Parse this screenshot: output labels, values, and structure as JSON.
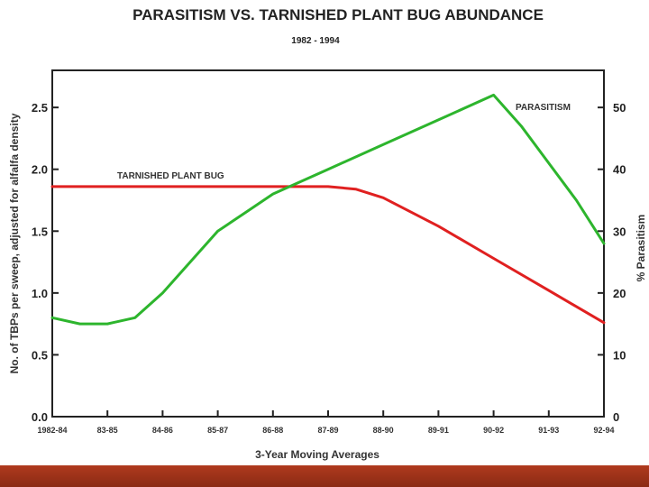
{
  "chart_data": {
    "type": "line",
    "title": "PARASITISM VS. TARNISHED PLANT BUG ABUNDANCE",
    "subtitle": "1982 - 1994",
    "xlabel": "3-Year Moving Averages",
    "ylabel": "No. of TBPs per sweep, adjusted for alfalfa density",
    "y2label": "% Parasitism",
    "categories": [
      "1982-84",
      "83-85",
      "84-86",
      "85-87",
      "86-88",
      "87-89",
      "88-90",
      "89-91",
      "90-92",
      "91-93",
      "92-94"
    ],
    "ylim": [
      0,
      2.8
    ],
    "y2lim": [
      0,
      56
    ],
    "yticks": [
      "0.0",
      "0.5",
      "1.0",
      "1.5",
      "2.0",
      "2.5"
    ],
    "y2ticks": [
      "0",
      "10",
      "20",
      "30",
      "40",
      "50"
    ],
    "series": [
      {
        "name": "TARNISHED PLANT BUG",
        "axis": "left",
        "color": "#e02020",
        "x": [
          0,
          1,
          2,
          3,
          4,
          5,
          5.5,
          6,
          7,
          8,
          9,
          10
        ],
        "values": [
          1.86,
          1.86,
          1.86,
          1.86,
          1.86,
          1.86,
          1.84,
          1.77,
          1.54,
          1.28,
          1.02,
          0.76
        ]
      },
      {
        "name": "PARASITISM",
        "axis": "right",
        "color": "#2db52d",
        "x": [
          0,
          0.5,
          1,
          1.5,
          2,
          3,
          3.5,
          4,
          5,
          6,
          7,
          8,
          8.5,
          9,
          9.5,
          10
        ],
        "values": [
          16,
          15,
          15,
          16,
          20,
          30,
          33,
          36,
          40,
          44,
          48,
          52,
          47,
          41,
          35,
          28
        ]
      }
    ],
    "colors": {
      "tpb": "#e02020",
      "parasitism": "#2db52d",
      "bottom_bar": "#9c3218"
    }
  }
}
